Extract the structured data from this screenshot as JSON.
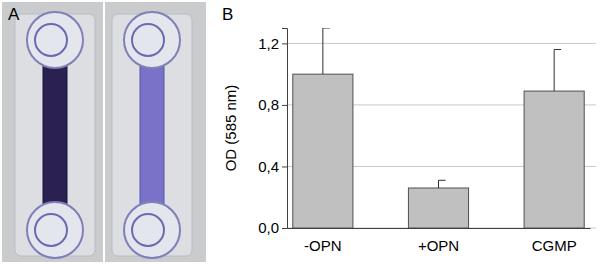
{
  "chart_data": {
    "type": "bar",
    "panel_labels": [
      "A",
      "B"
    ],
    "y_label": "OD (585 nm)",
    "categories": [
      "-OPN",
      "+OPN",
      "CGMP"
    ],
    "values": [
      1.0,
      0.26,
      0.89
    ],
    "errors": [
      0.3,
      0.05,
      0.27
    ],
    "color": "#c0c0c0",
    "ylim": [
      0,
      1.3
    ],
    "yticks": [
      {
        "value": 0,
        "label": "0,0"
      },
      {
        "value": 0.4,
        "label": "0,4"
      },
      {
        "value": 0.8,
        "label": "0,8"
      },
      {
        "value": 1.2,
        "label": "1,2"
      }
    ],
    "grid": true
  }
}
